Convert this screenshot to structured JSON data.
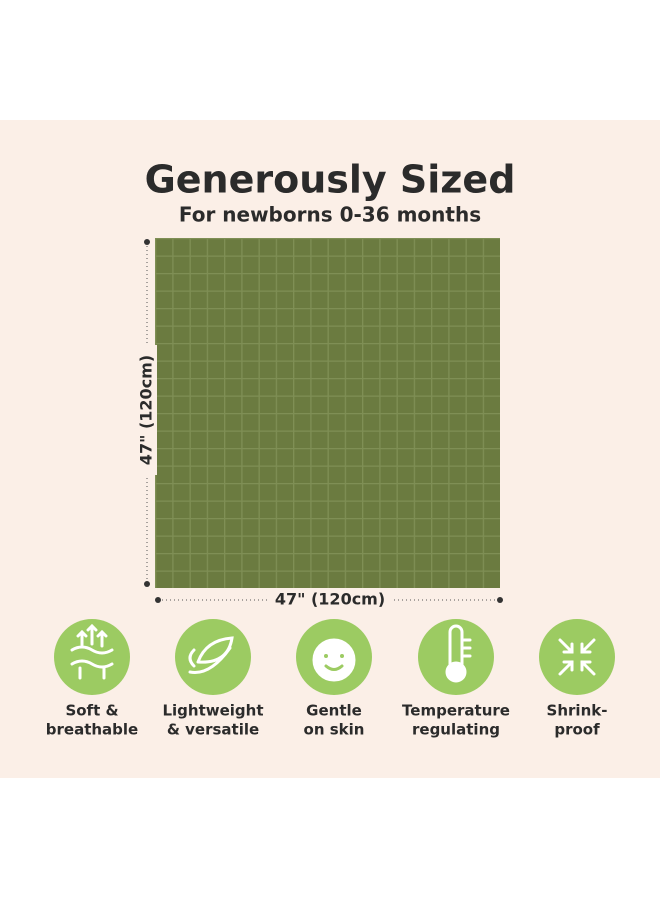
{
  "header": {
    "title": "Generously Sized",
    "subtitle": "For newborns 0-36 months"
  },
  "dimensions": {
    "height_label": "47\" (120cm)",
    "width_label": "47\" (120cm)"
  },
  "features": [
    {
      "lines": [
        "Soft &",
        "breathable"
      ]
    },
    {
      "lines": [
        "Lightweight",
        "& versatile"
      ]
    },
    {
      "lines": [
        "Gentle",
        "on skin"
      ]
    },
    {
      "lines": [
        "Temperature",
        "regulating"
      ]
    },
    {
      "lines": [
        "Shrink-",
        "proof"
      ]
    }
  ]
}
